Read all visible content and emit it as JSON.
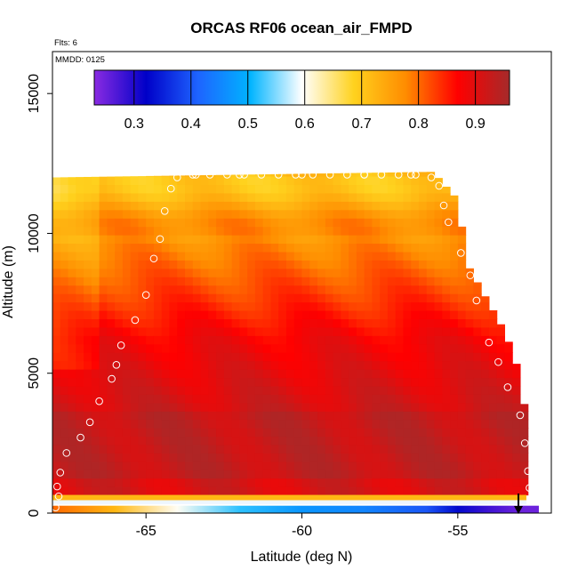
{
  "chart_data": {
    "type": "heatmap",
    "title": "ORCAS RF06 ocean_air_FMPD",
    "note_flights": "Flts: 6",
    "note_date": "MMDD: 0125",
    "xlabel": "Latitude (deg N)",
    "ylabel": "Altitude (m)",
    "xlim": [
      -68.0,
      -52.0
    ],
    "ylim": [
      0,
      16500
    ],
    "xticks": [
      -65,
      -60,
      -55
    ],
    "yticks": [
      0,
      5000,
      10000,
      15000
    ],
    "colorbar": {
      "range": [
        0.23,
        0.96
      ],
      "ticks": [
        0.3,
        0.4,
        0.5,
        0.6,
        0.7,
        0.8,
        0.9
      ],
      "colors": [
        "#8a2be2",
        "#0000c8",
        "#1e64ff",
        "#00b4ff",
        "#ffffff",
        "#ffd21e",
        "#ff8c00",
        "#ff0000",
        "#a52a2a"
      ]
    },
    "profile_top": [
      [
        -68.0,
        12000
      ],
      [
        -55.8,
        12200
      ],
      [
        -55.4,
        11700
      ],
      [
        -55.0,
        11200
      ],
      [
        -54.7,
        8900
      ],
      [
        -54.3,
        8100
      ],
      [
        -53.9,
        7300
      ],
      [
        -53.5,
        6500
      ],
      [
        -53.2,
        5600
      ],
      [
        -53.0,
        4900
      ],
      [
        -52.8,
        3300
      ],
      [
        -52.8,
        0
      ]
    ],
    "field_notes": [
      "upper troposphere around 0.72 to 0.80",
      "mid-levels around 0.85 to 0.90",
      "near-surface boundary layer around 0.94",
      "marine surface layer decreasing from 0.80 at -68 to 0.25 at -53"
    ],
    "surface_strip": {
      "altitude_range": [
        0,
        200
      ],
      "lat_values": [
        [
          -68,
          0.8
        ],
        [
          -66,
          0.72
        ],
        [
          -64,
          0.6
        ],
        [
          -62,
          0.52
        ],
        [
          -60,
          0.47
        ],
        [
          -58,
          0.45
        ],
        [
          -56,
          0.4
        ],
        [
          -55,
          0.33
        ],
        [
          -54,
          0.28
        ],
        [
          -53,
          0.25
        ]
      ]
    },
    "white_band": {
      "altitude_range": [
        320,
        460
      ],
      "value": 0.61
    },
    "yellow_band": {
      "altitude_range": [
        460,
        650
      ],
      "value": 0.72
    },
    "flight_track": [
      [
        -67.9,
        200
      ],
      [
        -67.8,
        600
      ],
      [
        -67.85,
        950
      ],
      [
        -67.75,
        1450
      ],
      [
        -67.55,
        2150
      ],
      [
        -67.1,
        2700
      ],
      [
        -66.8,
        3250
      ],
      [
        -66.5,
        4000
      ],
      [
        -66.1,
        4800
      ],
      [
        -65.95,
        5300
      ],
      [
        -65.8,
        6000
      ],
      [
        -65.35,
        6900
      ],
      [
        -65.0,
        7800
      ],
      [
        -64.75,
        9100
      ],
      [
        -64.55,
        9800
      ],
      [
        -64.4,
        10800
      ],
      [
        -64.2,
        11600
      ],
      [
        -64.0,
        12000
      ],
      [
        -63.4,
        12100
      ],
      [
        -62.0,
        12100
      ],
      [
        -60.0,
        12100
      ],
      [
        -58.0,
        12100
      ],
      [
        -56.5,
        12100
      ],
      [
        -55.85,
        12000
      ],
      [
        -55.6,
        11700
      ],
      [
        -55.45,
        11000
      ],
      [
        -55.3,
        10400
      ],
      [
        -54.9,
        9300
      ],
      [
        -54.6,
        8500
      ],
      [
        -54.4,
        7600
      ],
      [
        -54.0,
        6100
      ],
      [
        -53.7,
        5400
      ],
      [
        -53.4,
        4500
      ],
      [
        -53.0,
        3500
      ],
      [
        -52.85,
        2500
      ],
      [
        -52.75,
        1500
      ],
      [
        -52.7,
        900
      ]
    ]
  }
}
